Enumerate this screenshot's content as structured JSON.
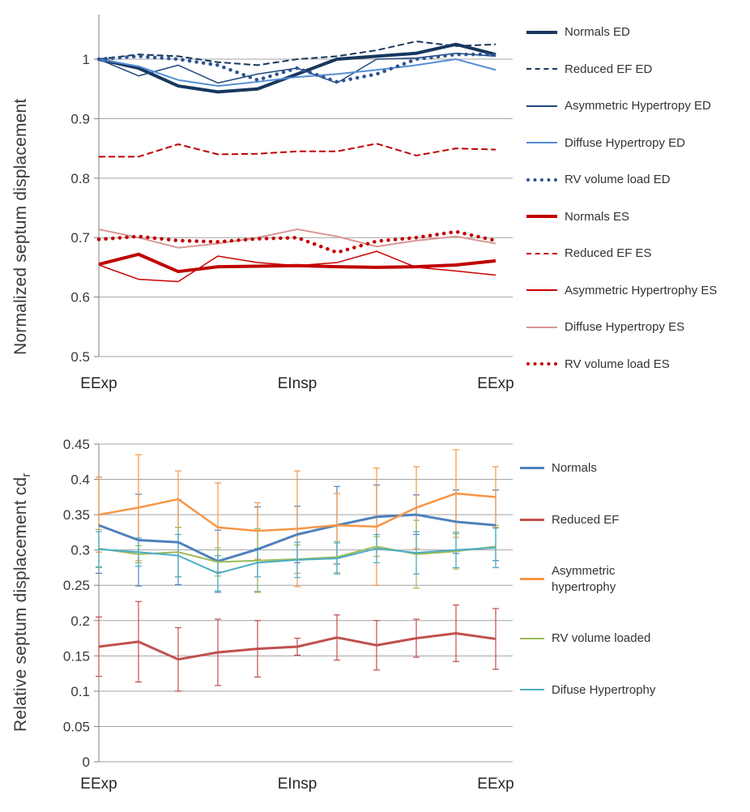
{
  "chart_data": [
    {
      "type": "line",
      "ylabel": "Normalized septum displacement",
      "ylabel_sub": "",
      "ylim": [
        0.5,
        1.075
      ],
      "yticks": [
        1,
        0.9,
        0.8,
        0.7,
        0.6,
        0.5
      ],
      "xticklabels": [
        "EExp",
        "EInsp",
        "EExp"
      ],
      "xtick_indices": [
        0,
        5,
        10
      ],
      "grid": true,
      "legend_position": "right",
      "series": [
        {
          "name": "Normals ED",
          "color": "#17375E",
          "style": "solid",
          "width": 4,
          "values": [
            1.0,
            0.985,
            0.955,
            0.945,
            0.95,
            0.975,
            1.0,
            1.005,
            1.01,
            1.025,
            1.008
          ]
        },
        {
          "name": "Reduced EF ED",
          "color": "#17375E",
          "style": "dashed",
          "width": 2,
          "values": [
            1.0,
            1.008,
            1.005,
            0.995,
            0.99,
            1.0,
            1.005,
            1.015,
            1.03,
            1.022,
            1.025
          ]
        },
        {
          "name": "Asymmetric Hypertropy ED",
          "color": "#1F497D",
          "style": "solid",
          "width": 1.5,
          "values": [
            1.0,
            0.972,
            0.99,
            0.96,
            0.975,
            0.985,
            0.96,
            1.0,
            1.002,
            1.01,
            1.005
          ]
        },
        {
          "name": "Diffuse Hypertropy ED",
          "color": "#558ED5",
          "style": "solid",
          "width": 2,
          "values": [
            1.0,
            0.988,
            0.965,
            0.955,
            0.962,
            0.97,
            0.975,
            0.982,
            0.99,
            1.0,
            0.982
          ]
        },
        {
          "name": "RV volume load ED",
          "color": "#2E5395",
          "style": "dotted",
          "width": 4.5,
          "values": [
            1.0,
            1.005,
            1.0,
            0.99,
            0.965,
            0.985,
            0.962,
            0.975,
            1.0,
            1.008,
            1.008
          ]
        },
        {
          "name": "Normals ES",
          "color": "#C00000",
          "style": "solid",
          "width": 4,
          "values": [
            0.655,
            0.672,
            0.643,
            0.651,
            0.652,
            0.653,
            0.651,
            0.65,
            0.651,
            0.654,
            0.661
          ]
        },
        {
          "name": "Reduced EF ES",
          "color": "#C00000",
          "style": "dashed",
          "width": 2,
          "values": [
            0.836,
            0.836,
            0.857,
            0.84,
            0.841,
            0.845,
            0.845,
            0.858,
            0.838,
            0.85,
            0.848
          ]
        },
        {
          "name": "Asymmetric Hypertrophy ES",
          "color": "#CC0000",
          "style": "solid",
          "width": 1.5,
          "values": [
            0.654,
            0.63,
            0.626,
            0.669,
            0.658,
            0.653,
            0.658,
            0.677,
            0.65,
            0.644,
            0.637
          ]
        },
        {
          "name": "Diffuse Hypertropy ES",
          "color": "#D99694",
          "style": "solid",
          "width": 2,
          "values": [
            0.714,
            0.7,
            0.683,
            0.69,
            0.7,
            0.714,
            0.702,
            0.685,
            0.695,
            0.702,
            0.69
          ]
        },
        {
          "name": "RV volume load ES",
          "color": "#C00000",
          "style": "dotted",
          "width": 4.5,
          "values": [
            0.697,
            0.702,
            0.695,
            0.693,
            0.698,
            0.7,
            0.675,
            0.694,
            0.7,
            0.71,
            0.695
          ]
        }
      ]
    },
    {
      "type": "line",
      "ylabel": "Relative septum displacement  cd",
      "ylabel_sub": "r",
      "ylim": [
        0,
        0.45
      ],
      "yticks": [
        0.45,
        0.4,
        0.35,
        0.3,
        0.25,
        0.2,
        0.15,
        0.1,
        0.05,
        0
      ],
      "xticklabels": [
        "EExp",
        "EInsp",
        "EExp"
      ],
      "xtick_indices": [
        0,
        5,
        10
      ],
      "grid": true,
      "legend_position": "right",
      "series": [
        {
          "name": "Normals",
          "color": "#4F81BD",
          "style": "solid",
          "width": 3,
          "values": [
            0.335,
            0.314,
            0.311,
            0.284,
            0.301,
            0.322,
            0.335,
            0.347,
            0.35,
            0.34,
            0.335
          ],
          "errors": [
            0.068,
            0.065,
            0.06,
            0.044,
            0.06,
            0.04,
            0.055,
            0.045,
            0.028,
            0.045,
            0.05
          ]
        },
        {
          "name": "Reduced EF",
          "color": "#C0504D",
          "style": "solid",
          "width": 3,
          "values": [
            0.163,
            0.17,
            0.145,
            0.155,
            0.16,
            0.163,
            0.176,
            0.165,
            0.175,
            0.182,
            0.174
          ],
          "errors": [
            0.042,
            0.057,
            0.045,
            0.047,
            0.04,
            0.012,
            0.032,
            0.035,
            0.027,
            0.04,
            0.043
          ]
        },
        {
          "name": "Asymmetric hypertrophy",
          "color": "#F79646",
          "style": "solid",
          "width": 2.5,
          "values": [
            0.35,
            0.36,
            0.372,
            0.332,
            0.327,
            0.33,
            0.335,
            0.333,
            0.36,
            0.38,
            0.375
          ],
          "errors": [
            0.053,
            0.075,
            0.04,
            0.063,
            0.04,
            0.082,
            0.045,
            0.083,
            0.058,
            0.062,
            0.043
          ]
        },
        {
          "name": "RV volume loaded",
          "color": "#9BBB59",
          "style": "solid",
          "width": 2,
          "values": [
            0.302,
            0.294,
            0.297,
            0.283,
            0.285,
            0.287,
            0.29,
            0.305,
            0.294,
            0.298,
            0.305
          ],
          "errors": [
            0.027,
            0.012,
            0.035,
            0.02,
            0.045,
            0.02,
            0.022,
            0.014,
            0.048,
            0.025,
            0.03
          ]
        },
        {
          "name": "Difuse Hypertrophy",
          "color": "#4BACC6",
          "style": "solid",
          "width": 2,
          "values": [
            0.301,
            0.297,
            0.292,
            0.267,
            0.282,
            0.286,
            0.288,
            0.302,
            0.296,
            0.3,
            0.303
          ],
          "errors": [
            0.025,
            0.02,
            0.03,
            0.025,
            0.02,
            0.025,
            0.022,
            0.02,
            0.03,
            0.025,
            0.028
          ]
        }
      ]
    }
  ]
}
